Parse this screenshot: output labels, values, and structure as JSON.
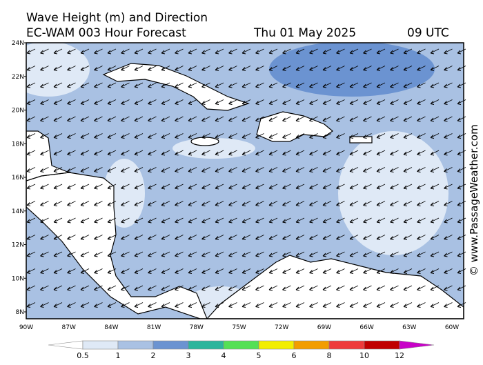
{
  "title": {
    "line1": "Wave Height (m) and Direction",
    "model": "EC-WAM 003 Hour Forecast",
    "date": "Thu 01 May 2025",
    "time": "09 UTC"
  },
  "map": {
    "lat_labels": [
      "24N",
      "22N",
      "20N",
      "18N",
      "16N",
      "14N",
      "12N",
      "10N",
      "8N"
    ],
    "lon_labels": [
      "90W",
      "87W",
      "84W",
      "81W",
      "78W",
      "75W",
      "72W",
      "69W",
      "66W",
      "63W",
      "60W"
    ]
  },
  "colorbar": {
    "levels": [
      0.5,
      1,
      2,
      3,
      4,
      5,
      6,
      8,
      10,
      12
    ],
    "colors": [
      "#dfe9f6",
      "#a9c1e3",
      "#6b93d1",
      "#2db59c",
      "#55e055",
      "#f2ee00",
      "#f29d00",
      "#ee3b3b",
      "#c00000"
    ],
    "under_color": "#ffffff",
    "over_color": "#c800c8"
  },
  "credit": "© www.PassageWeather.com"
}
